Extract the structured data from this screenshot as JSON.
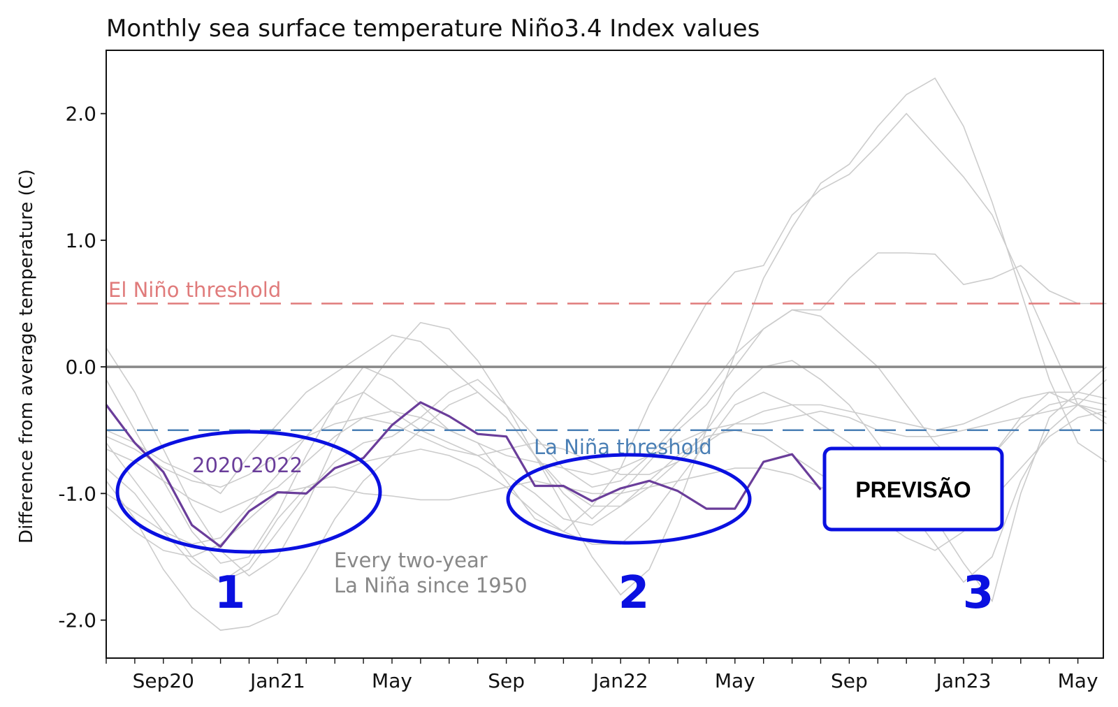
{
  "chart_data": {
    "type": "line",
    "title": "Monthly sea surface temperature Niño3.4 Index values",
    "ylabel": "Difference from average temperature (C)",
    "xlabel": "",
    "ylim": [
      -2.3,
      2.5
    ],
    "grid": false,
    "x_months": [
      "2020-07",
      "2020-08",
      "2020-09",
      "2020-10",
      "2020-11",
      "2020-12",
      "2021-01",
      "2021-02",
      "2021-03",
      "2021-04",
      "2021-05",
      "2021-06",
      "2021-07",
      "2021-08",
      "2021-09",
      "2021-10",
      "2021-11",
      "2021-12",
      "2022-01",
      "2022-02",
      "2022-03",
      "2022-04",
      "2022-05",
      "2022-06",
      "2022-07",
      "2022-08",
      "2022-09",
      "2022-10",
      "2022-11",
      "2022-12",
      "2023-01",
      "2023-02",
      "2023-03",
      "2023-04",
      "2023-05",
      "2023-06"
    ],
    "x_tick_labels": [
      {
        "month": "2020-09",
        "label": "Sep20"
      },
      {
        "month": "2021-01",
        "label": "Jan21"
      },
      {
        "month": "2021-05",
        "label": "May"
      },
      {
        "month": "2021-09",
        "label": "Sep"
      },
      {
        "month": "2022-01",
        "label": "Jan22"
      },
      {
        "month": "2022-05",
        "label": "May"
      },
      {
        "month": "2022-09",
        "label": "Sep"
      },
      {
        "month": "2023-01",
        "label": "Jan23"
      },
      {
        "month": "2023-05",
        "label": "May"
      }
    ],
    "y_ticks": [
      {
        "value": 2.0,
        "label": "2.0"
      },
      {
        "value": 1.0,
        "label": "1.0"
      },
      {
        "value": 0.0,
        "label": "0.0"
      },
      {
        "value": -1.0,
        "label": "-1.0"
      },
      {
        "value": -2.0,
        "label": "-2.0"
      }
    ],
    "thresholds": [
      {
        "label": "El Niño threshold",
        "value": 0.5,
        "color": "#e07b7b"
      },
      {
        "label": "La Niña threshold",
        "value": -0.5,
        "color": "#4a7fb5"
      }
    ],
    "zero_line_color": "#888888",
    "main_series": {
      "name": "2020-2022",
      "color": "#6a3d9a",
      "start_month_index": 0,
      "values": [
        -0.3,
        -0.6,
        -0.83,
        -1.25,
        -1.42,
        -1.14,
        -0.99,
        -1.0,
        -0.8,
        -0.72,
        -0.46,
        -0.28,
        -0.39,
        -0.53,
        -0.55,
        -0.94,
        -0.94,
        -1.06,
        -0.96,
        -0.9,
        -0.98,
        -1.12,
        -1.12,
        -0.75,
        -0.69,
        -0.97
      ]
    },
    "background_series_label": "Every two-year La Niña since 1950",
    "background_color": "#cccccc",
    "background_series": [
      {
        "values": [
          0.15,
          -0.2,
          -0.65,
          -1.1,
          -1.45,
          -1.65,
          -1.5,
          -1.1,
          -0.6,
          -0.2,
          0.1,
          0.35,
          0.3,
          0.05,
          -0.3,
          -0.7,
          -1.1,
          -1.5,
          -1.8,
          -1.6,
          -1.1,
          -0.5,
          0.1,
          0.7,
          1.1,
          1.45,
          1.6,
          1.9,
          2.15,
          2.28,
          1.9,
          1.3,
          0.6,
          -0.1,
          -0.6,
          -0.75
        ]
      },
      {
        "values": [
          -0.1,
          -0.5,
          -0.9,
          -1.3,
          -1.55,
          -1.5,
          -1.15,
          -0.7,
          -0.3,
          0.0,
          -0.1,
          -0.3,
          -0.5,
          -0.6,
          -0.9,
          -1.2,
          -1.3,
          -1.1,
          -0.8,
          -0.3,
          0.1,
          0.5,
          0.75,
          0.8,
          1.2,
          1.4,
          1.52,
          1.75,
          2.0,
          1.75,
          1.5,
          1.2,
          0.7,
          0.2,
          -0.3,
          -0.4
        ]
      },
      {
        "values": [
          -0.5,
          -0.6,
          -0.75,
          -0.85,
          -1.0,
          -0.7,
          -0.45,
          -0.2,
          -0.05,
          0.1,
          0.25,
          0.2,
          0.0,
          -0.2,
          -0.4,
          -0.7,
          -1.0,
          -1.2,
          -1.0,
          -0.75,
          -0.5,
          -0.3,
          0.0,
          0.3,
          0.45,
          0.45,
          0.7,
          0.9,
          0.9,
          0.89,
          0.65,
          0.7,
          0.8,
          0.6,
          0.5,
          0.5
        ]
      },
      {
        "values": [
          -0.6,
          -0.9,
          -1.2,
          -1.5,
          -1.7,
          -1.6,
          -1.3,
          -1.0,
          -0.75,
          -0.6,
          -0.55,
          -0.4,
          -0.2,
          -0.1,
          -0.3,
          -0.55,
          -0.8,
          -0.95,
          -0.9,
          -0.7,
          -0.45,
          -0.2,
          0.1,
          0.3,
          0.45,
          0.4,
          0.2,
          0.0,
          -0.3,
          -0.6,
          -0.8,
          -0.7,
          -0.4,
          -0.2,
          -0.2,
          -0.25
        ]
      },
      {
        "values": [
          -0.8,
          -1.0,
          -1.3,
          -1.55,
          -1.7,
          -1.55,
          -1.2,
          -0.95,
          -0.85,
          -0.75,
          -0.7,
          -0.5,
          -0.3,
          -0.2,
          -0.4,
          -0.7,
          -0.95,
          -1.1,
          -1.1,
          -0.95,
          -0.75,
          -0.5,
          -0.2,
          0.0,
          0.05,
          -0.1,
          -0.3,
          -0.6,
          -0.9,
          -1.2,
          -1.55,
          -1.85,
          -1.0,
          -0.4,
          -0.2,
          0.0
        ]
      },
      {
        "values": [
          -0.9,
          -1.2,
          -1.6,
          -1.9,
          -2.08,
          -2.05,
          -1.95,
          -1.6,
          -1.2,
          -0.9,
          -0.7,
          -0.65,
          -0.7,
          -0.8,
          -0.95,
          -1.15,
          -1.3,
          -1.4,
          -1.4,
          -1.2,
          -0.9,
          -0.6,
          -0.3,
          -0.2,
          -0.3,
          -0.45,
          -0.6,
          -0.8,
          -1.1,
          -1.4,
          -1.7,
          -1.5,
          -0.9,
          -0.5,
          -0.3,
          -0.1
        ]
      },
      {
        "values": [
          -1.0,
          -1.15,
          -1.3,
          -1.4,
          -1.35,
          -1.1,
          -0.85,
          -0.55,
          -0.3,
          -0.2,
          -0.35,
          -0.5,
          -0.6,
          -0.7,
          -0.85,
          -1.0,
          -1.2,
          -1.25,
          -1.1,
          -0.9,
          -0.7,
          -0.55,
          -0.5,
          -0.55,
          -0.7,
          -0.85,
          -1.0,
          -1.1,
          -1.2,
          -1.1,
          -0.9,
          -0.7,
          -0.45,
          -0.3,
          -0.25,
          -0.3
        ]
      },
      {
        "values": [
          -1.1,
          -1.3,
          -1.45,
          -1.5,
          -1.4,
          -1.2,
          -1.0,
          -0.95,
          -0.95,
          -1.0,
          -1.02,
          -1.05,
          -1.05,
          -1.0,
          -0.95,
          -0.9,
          -0.95,
          -1.0,
          -1.0,
          -0.95,
          -0.9,
          -0.85,
          -0.8,
          -0.8,
          -0.85,
          -0.95,
          -1.05,
          -1.2,
          -1.35,
          -1.45,
          -1.3,
          -1.05,
          -0.8,
          -0.55,
          -0.4,
          -0.35
        ]
      },
      {
        "values": [
          -0.65,
          -0.75,
          -0.9,
          -1.05,
          -1.15,
          -1.05,
          -0.95,
          -0.75,
          -0.55,
          -0.4,
          -0.35,
          -0.4,
          -0.5,
          -0.6,
          -0.7,
          -0.75,
          -0.8,
          -0.85,
          -0.8,
          -0.7,
          -0.6,
          -0.5,
          -0.45,
          -0.45,
          -0.4,
          -0.35,
          -0.4,
          -0.5,
          -0.55,
          -0.55,
          -0.5,
          -0.45,
          -0.4,
          -0.35,
          -0.3,
          -0.35
        ]
      },
      {
        "values": [
          -0.55,
          -0.65,
          -0.8,
          -0.9,
          -0.95,
          -0.85,
          -0.7,
          -0.55,
          -0.45,
          -0.4,
          -0.45,
          -0.55,
          -0.65,
          -0.7,
          -0.65,
          -0.6,
          -0.65,
          -0.75,
          -0.85,
          -0.85,
          -0.75,
          -0.6,
          -0.45,
          -0.35,
          -0.3,
          -0.3,
          -0.35,
          -0.4,
          -0.45,
          -0.5,
          -0.45,
          -0.35,
          -0.25,
          -0.2,
          -0.3,
          -0.45
        ]
      }
    ]
  },
  "annotations": {
    "el_nino_label": "El Niño threshold",
    "la_nina_label": "La Niña threshold",
    "series_label": "2020-2022",
    "background_label_line1": "Every two-year",
    "background_label_line2": "La Niña since 1950",
    "num_1": "1",
    "num_2": "2",
    "num_3": "3",
    "forecast_box": "PREVISÃO",
    "highlight_color": "#0a10e0"
  }
}
